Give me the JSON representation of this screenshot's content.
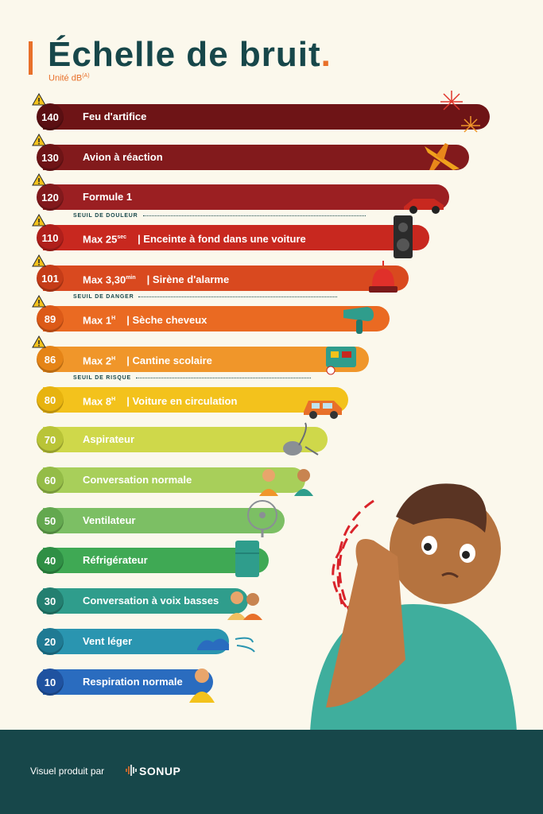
{
  "header": {
    "title": "Échelle de bruit",
    "title_dot": ".",
    "unit": "Unité dB",
    "unit_sup": "(A)"
  },
  "thresholds": {
    "pain": "SEUIL DE DOULEUR",
    "danger": "SEUIL DE DANGER",
    "risk": "SEUIL DE RISQUE"
  },
  "levels": [
    {
      "db": "140",
      "text": "Feu d'artifice",
      "sup": "",
      "suffix": ""
    },
    {
      "db": "130",
      "text": "Avion à réaction",
      "sup": "",
      "suffix": ""
    },
    {
      "db": "120",
      "text": "Formule 1",
      "sup": "",
      "suffix": ""
    },
    {
      "db": "110",
      "text": "Max 25",
      "sup": "sec",
      "suffix": "| Enceinte à fond dans une voiture"
    },
    {
      "db": "101",
      "text": "Max 3,30",
      "sup": "min",
      "suffix": "| Sirène d'alarme"
    },
    {
      "db": "89",
      "text": "Max 1",
      "sup": "H",
      "suffix": "| Sèche cheveux"
    },
    {
      "db": "86",
      "text": "Max 2",
      "sup": "H",
      "suffix": "| Cantine scolaire"
    },
    {
      "db": "80",
      "text": "Max 8",
      "sup": "H",
      "suffix": "| Voiture en circulation"
    },
    {
      "db": "70",
      "text": "Aspirateur",
      "sup": "",
      "suffix": ""
    },
    {
      "db": "60",
      "text": "Conversation normale",
      "sup": "",
      "suffix": ""
    },
    {
      "db": "50",
      "text": "Ventilateur",
      "sup": "",
      "suffix": ""
    },
    {
      "db": "40",
      "text": "Réfrigérateur",
      "sup": "",
      "suffix": ""
    },
    {
      "db": "30",
      "text": "Conversation à voix basses",
      "sup": "",
      "suffix": ""
    },
    {
      "db": "20",
      "text": "Vent léger",
      "sup": "",
      "suffix": ""
    },
    {
      "db": "10",
      "text": "Respiration normale",
      "sup": "",
      "suffix": ""
    }
  ],
  "colors": {
    "bars": [
      "#6e1416",
      "#821a1c",
      "#9b1f22",
      "#c8281f",
      "#d9491f",
      "#ea6a22",
      "#f0962a",
      "#f3c21c",
      "#cfd84a",
      "#a8cf5a",
      "#7cbf64",
      "#3fa954",
      "#2f9d8c",
      "#2a95b0",
      "#2a6cbf"
    ],
    "circles": [
      "#5a0f12",
      "#6e1416",
      "#82191c",
      "#b01f1b",
      "#c53c18",
      "#dc5a18",
      "#e58417",
      "#e7b30f",
      "#b9c437",
      "#94bc47",
      "#63a84f",
      "#2f8f45",
      "#237f70",
      "#1f7a93",
      "#1f52a0"
    ],
    "footer": "#17474a",
    "accent": "#e8702a"
  },
  "footer": {
    "credit": "Visuel produit par",
    "brand": "SONUP"
  }
}
